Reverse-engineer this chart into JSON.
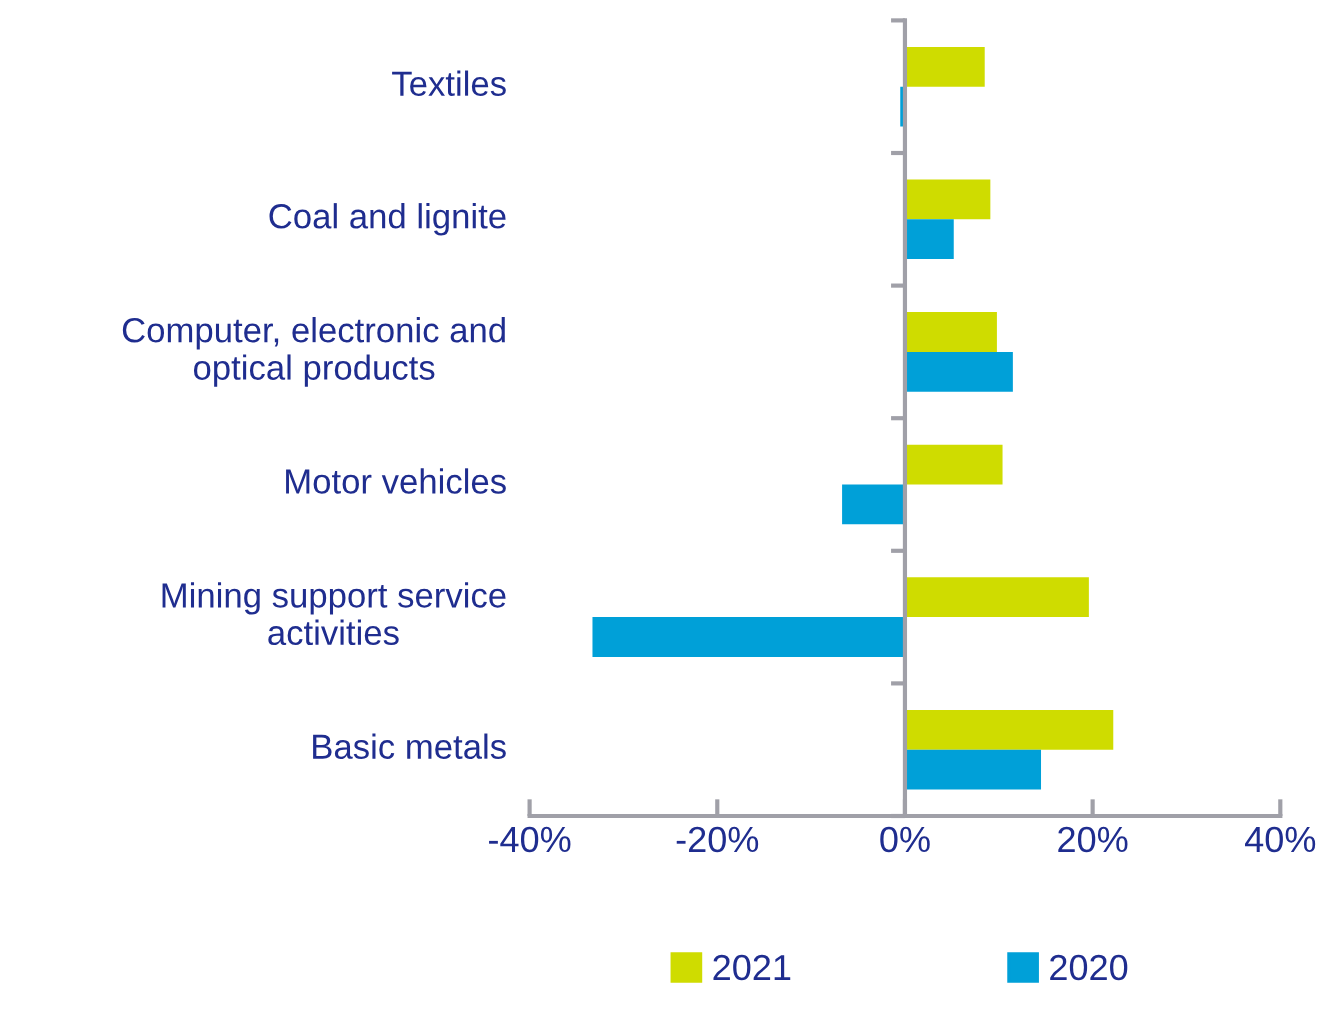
{
  "chart_data": {
    "type": "bar",
    "orientation": "horizontal",
    "categories": [
      "Textiles",
      "Coal and lignite",
      "Computer, electronic and\noptical products",
      "Motor vehicles",
      "Mining support service\nactivities",
      "Basic metals"
    ],
    "series": [
      {
        "name": "2021",
        "color": "#cfdc00",
        "values": [
          8.5,
          9.1,
          9.8,
          10.4,
          19.6,
          22.2
        ]
      },
      {
        "name": "2020",
        "color": "#00a0d8",
        "values": [
          -0.5,
          5.2,
          11.5,
          -6.7,
          -33.3,
          14.5
        ]
      }
    ],
    "xlim": [
      -40,
      40
    ],
    "xticks": [
      {
        "value": -40,
        "label": "-40%"
      },
      {
        "value": -20,
        "label": "-20%"
      },
      {
        "value": 0,
        "label": "0%"
      },
      {
        "value": 20,
        "label": "20%"
      },
      {
        "value": 40,
        "label": "40%"
      }
    ],
    "legend": "bottom"
  }
}
